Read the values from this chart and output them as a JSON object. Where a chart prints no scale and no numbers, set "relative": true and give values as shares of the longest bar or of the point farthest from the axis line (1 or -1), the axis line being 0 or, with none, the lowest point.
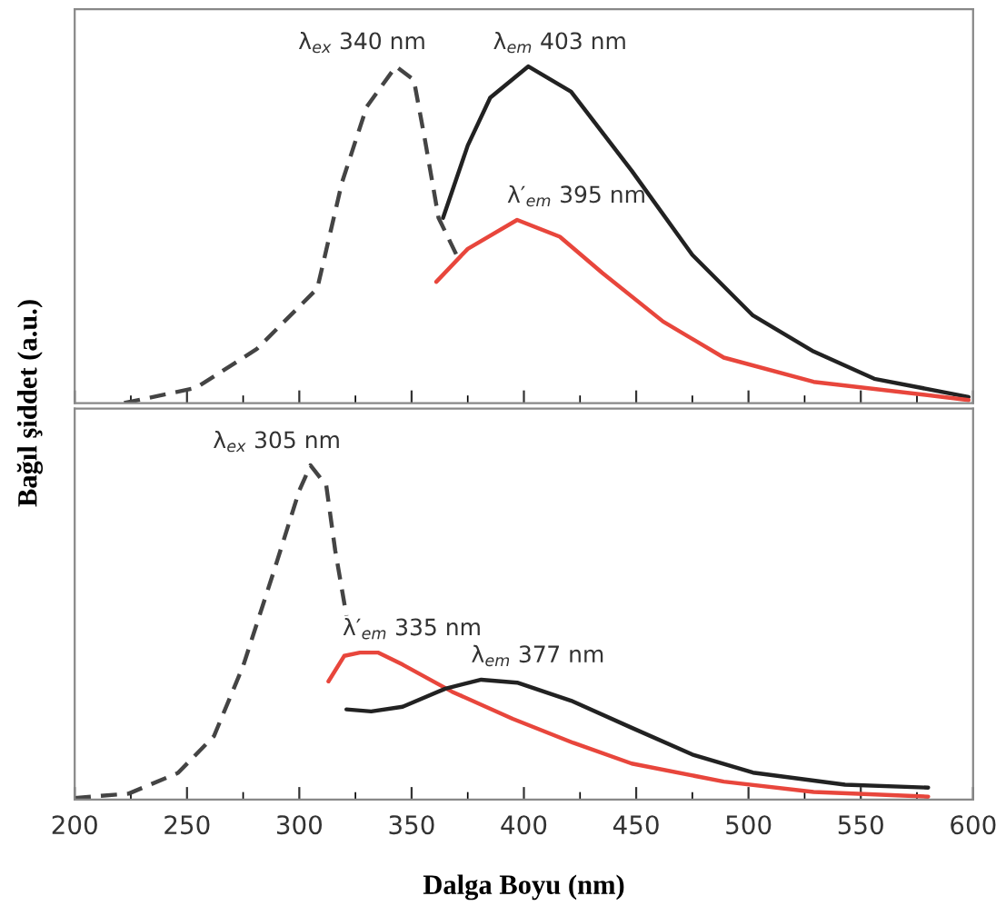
{
  "chart_data": [
    {
      "type": "line",
      "relative": true,
      "ylabel": "Bağıl şiddet (a.u.)",
      "tick_labels": false,
      "grid": false,
      "legend": false,
      "xlim": [
        200,
        600
      ],
      "xticks": [
        200,
        {
          "value": 225,
          "label": null
        },
        250,
        {
          "value": 275,
          "label": null
        },
        300,
        {
          "value": 325,
          "label": null
        },
        350,
        {
          "value": 375,
          "label": null
        },
        400,
        {
          "value": 425,
          "label": null
        },
        450,
        {
          "value": 475,
          "label": null
        },
        500,
        {
          "value": 525,
          "label": null
        },
        550,
        {
          "value": 575,
          "label": null
        },
        600
      ],
      "series": [
        {
          "color": "#444444",
          "line_style": "dashed",
          "x": [
            222,
            254,
            281,
            308,
            319,
            330,
            343,
            351,
            356,
            362,
            370
          ],
          "values": [
            0,
            0.045,
            0.16,
            0.34,
            0.655,
            0.88,
            1.0,
            0.96,
            0.78,
            0.55,
            0.44
          ]
        },
        {
          "color": "#222222",
          "line_style": "solid",
          "x": [
            364,
            375,
            385,
            402,
            421,
            448,
            475,
            502,
            529,
            556,
            598
          ],
          "values": [
            0.55,
            0.765,
            0.907,
            1.0,
            0.925,
            0.69,
            0.44,
            0.26,
            0.153,
            0.072,
            0.018
          ]
        },
        {
          "color": "#e8463c",
          "line_style": "solid",
          "x": [
            361,
            375,
            397,
            416,
            435,
            462,
            489,
            529,
            598
          ],
          "values": [
            0.36,
            0.458,
            0.544,
            0.494,
            0.386,
            0.242,
            0.135,
            0.063,
            0.009
          ]
        }
      ],
      "annotations": [
        {
          "text": "λ$_{ex}$ 340 nm",
          "x": 343,
          "y": 1.0
        },
        {
          "text": "λ$_{em}$ 403 nm",
          "x": 402,
          "y": 1.0
        },
        {
          "text": "λ′$_{em}$ 395 nm",
          "x": 397,
          "y": 0.544
        }
      ]
    },
    {
      "type": "line",
      "relative": true,
      "xlabel": "Dalga Boyu (nm)",
      "tick_labels": "x",
      "grid": false,
      "legend": false,
      "xlim": [
        200,
        600
      ],
      "xticks": [
        200,
        {
          "value": 225,
          "label": null
        },
        250,
        {
          "value": 275,
          "label": null
        },
        300,
        {
          "value": 325,
          "label": null
        },
        350,
        {
          "value": 375,
          "label": null
        },
        400,
        {
          "value": 425,
          "label": null
        },
        450,
        {
          "value": 475,
          "label": null
        },
        500,
        {
          "value": 525,
          "label": null
        },
        550,
        {
          "value": 575,
          "label": null
        },
        600
      ],
      "series": [
        {
          "color": "#444444",
          "line_style": "dashed",
          "x": [
            200,
            224,
            246,
            262,
            275,
            289,
            300,
            305,
            312,
            316,
            321
          ],
          "values": [
            0.005,
            0.018,
            0.08,
            0.19,
            0.4,
            0.69,
            0.925,
            1.0,
            0.94,
            0.745,
            0.55
          ]
        },
        {
          "color": "#e8463c",
          "line_style": "solid",
          "x": [
            313,
            320,
            327,
            335,
            346,
            368,
            395,
            422,
            448,
            489,
            529,
            580
          ],
          "values": [
            0.354,
            0.43,
            0.44,
            0.44,
            0.404,
            0.323,
            0.242,
            0.17,
            0.108,
            0.054,
            0.023,
            0.009
          ]
        },
        {
          "color": "#222222",
          "line_style": "solid",
          "x": [
            321,
            332,
            346,
            365,
            381,
            397,
            421,
            448,
            475,
            502,
            543,
            580
          ],
          "values": [
            0.27,
            0.264,
            0.278,
            0.332,
            0.359,
            0.35,
            0.296,
            0.215,
            0.135,
            0.081,
            0.045,
            0.036
          ]
        }
      ],
      "annotations": [
        {
          "text": "λ$_{ex}$ 305 nm",
          "x": 305,
          "y": 1.0
        },
        {
          "text": "λ′$_{em}$ 335 nm",
          "x": 335,
          "y": 0.44
        },
        {
          "text": "λ$_{em}$ 377 nm",
          "x": 381,
          "y": 0.359
        }
      ]
    }
  ]
}
